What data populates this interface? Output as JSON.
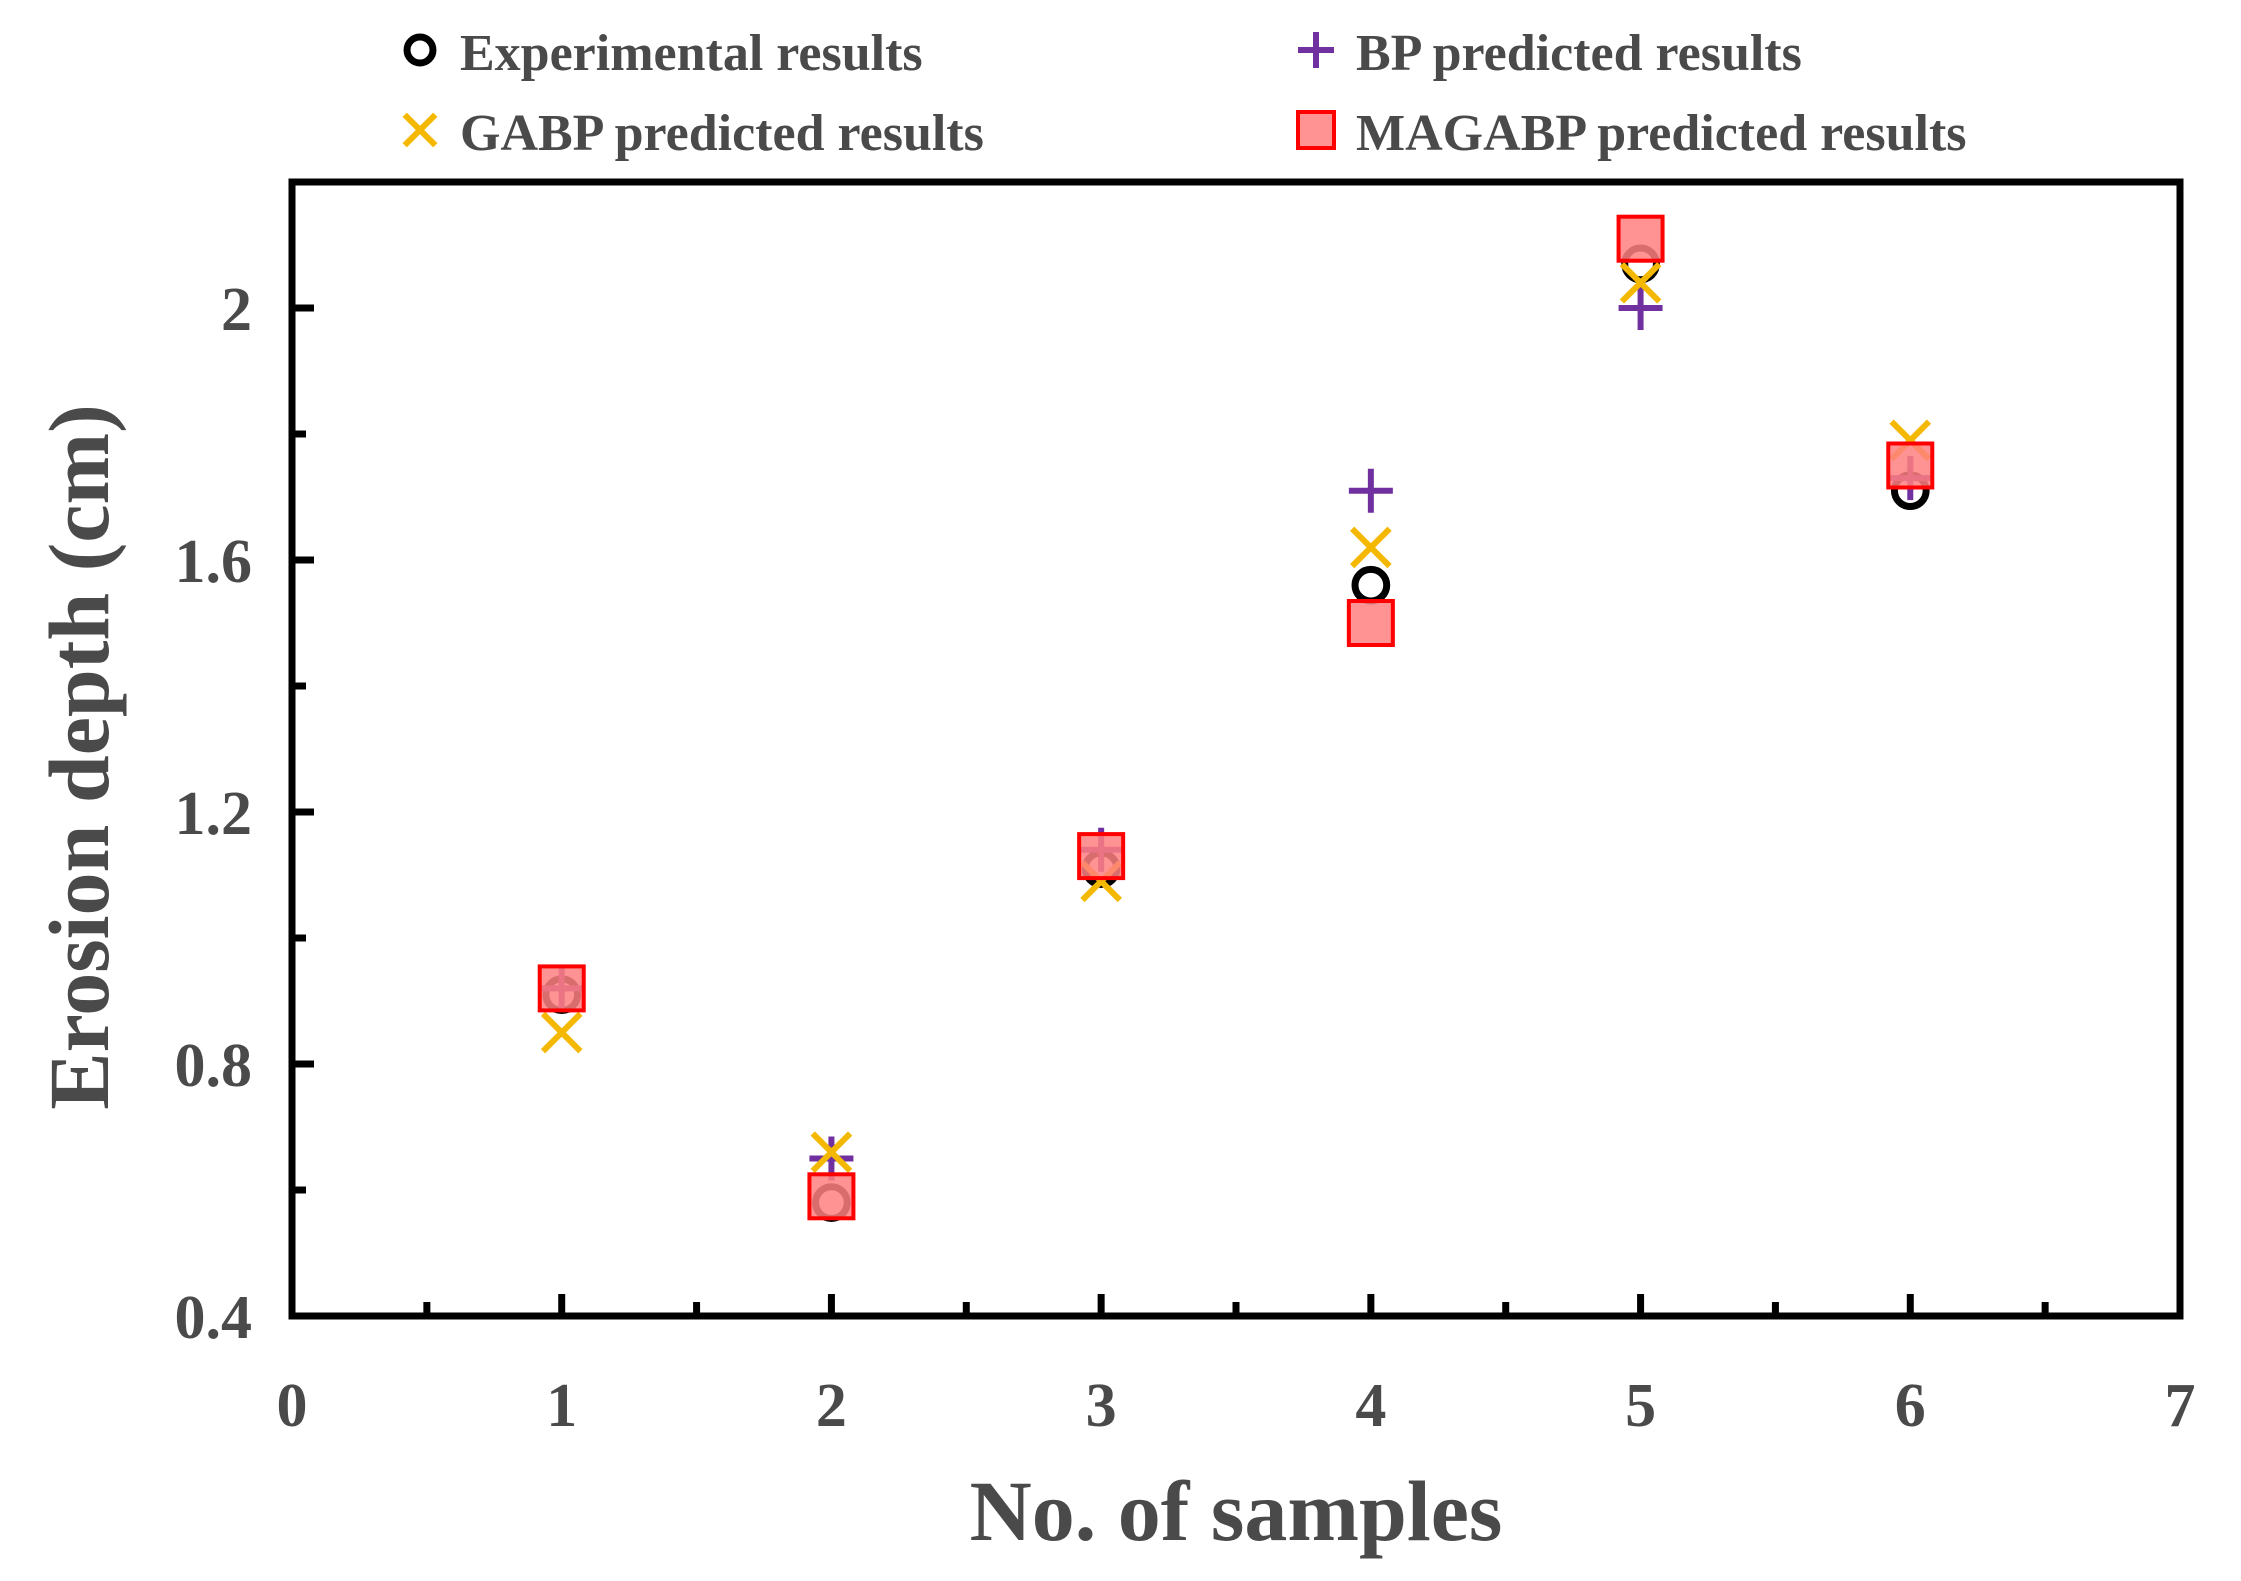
{
  "chart_data": {
    "type": "scatter",
    "title": "",
    "xlabel": "No. of samples",
    "ylabel": "Erosion depth (cm)",
    "xlim": [
      0,
      7
    ],
    "ylim": [
      0.4,
      2.2
    ],
    "xticks": [
      0,
      1,
      2,
      3,
      4,
      5,
      6,
      7
    ],
    "xtick_labels": [
      "0",
      "1",
      "2",
      "3",
      "4",
      "5",
      "6",
      "7"
    ],
    "yticks": [
      0.4,
      0.8,
      1.2,
      1.6,
      2.0
    ],
    "ytick_labels": [
      "0.4",
      "0.8",
      "1.2",
      "1.6",
      "2"
    ],
    "grid": false,
    "legend_position": "top",
    "series": [
      {
        "name": "Experimental results",
        "marker": "circle",
        "color": "#000000",
        "x": [
          1,
          2,
          3,
          4,
          5,
          6
        ],
        "y": [
          0.91,
          0.58,
          1.11,
          1.56,
          2.07,
          1.71
        ]
      },
      {
        "name": "BP predicted results",
        "marker": "plus",
        "color": "#7030a0",
        "x": [
          1,
          2,
          3,
          4,
          5,
          6
        ],
        "y": [
          0.92,
          0.65,
          1.14,
          1.71,
          2.0,
          1.73
        ]
      },
      {
        "name": "GABP predicted results",
        "marker": "x",
        "color": "#f5b800",
        "x": [
          1,
          2,
          3,
          4,
          5,
          6
        ],
        "y": [
          0.85,
          0.66,
          1.09,
          1.62,
          2.04,
          1.79
        ]
      },
      {
        "name": "MAGABP predicted results",
        "marker": "square",
        "color": "#ff0000",
        "fill": "#ff7f7f",
        "x": [
          1,
          2,
          3,
          4,
          5,
          6
        ],
        "y": [
          0.92,
          0.59,
          1.13,
          1.5,
          2.11,
          1.75
        ]
      }
    ]
  }
}
